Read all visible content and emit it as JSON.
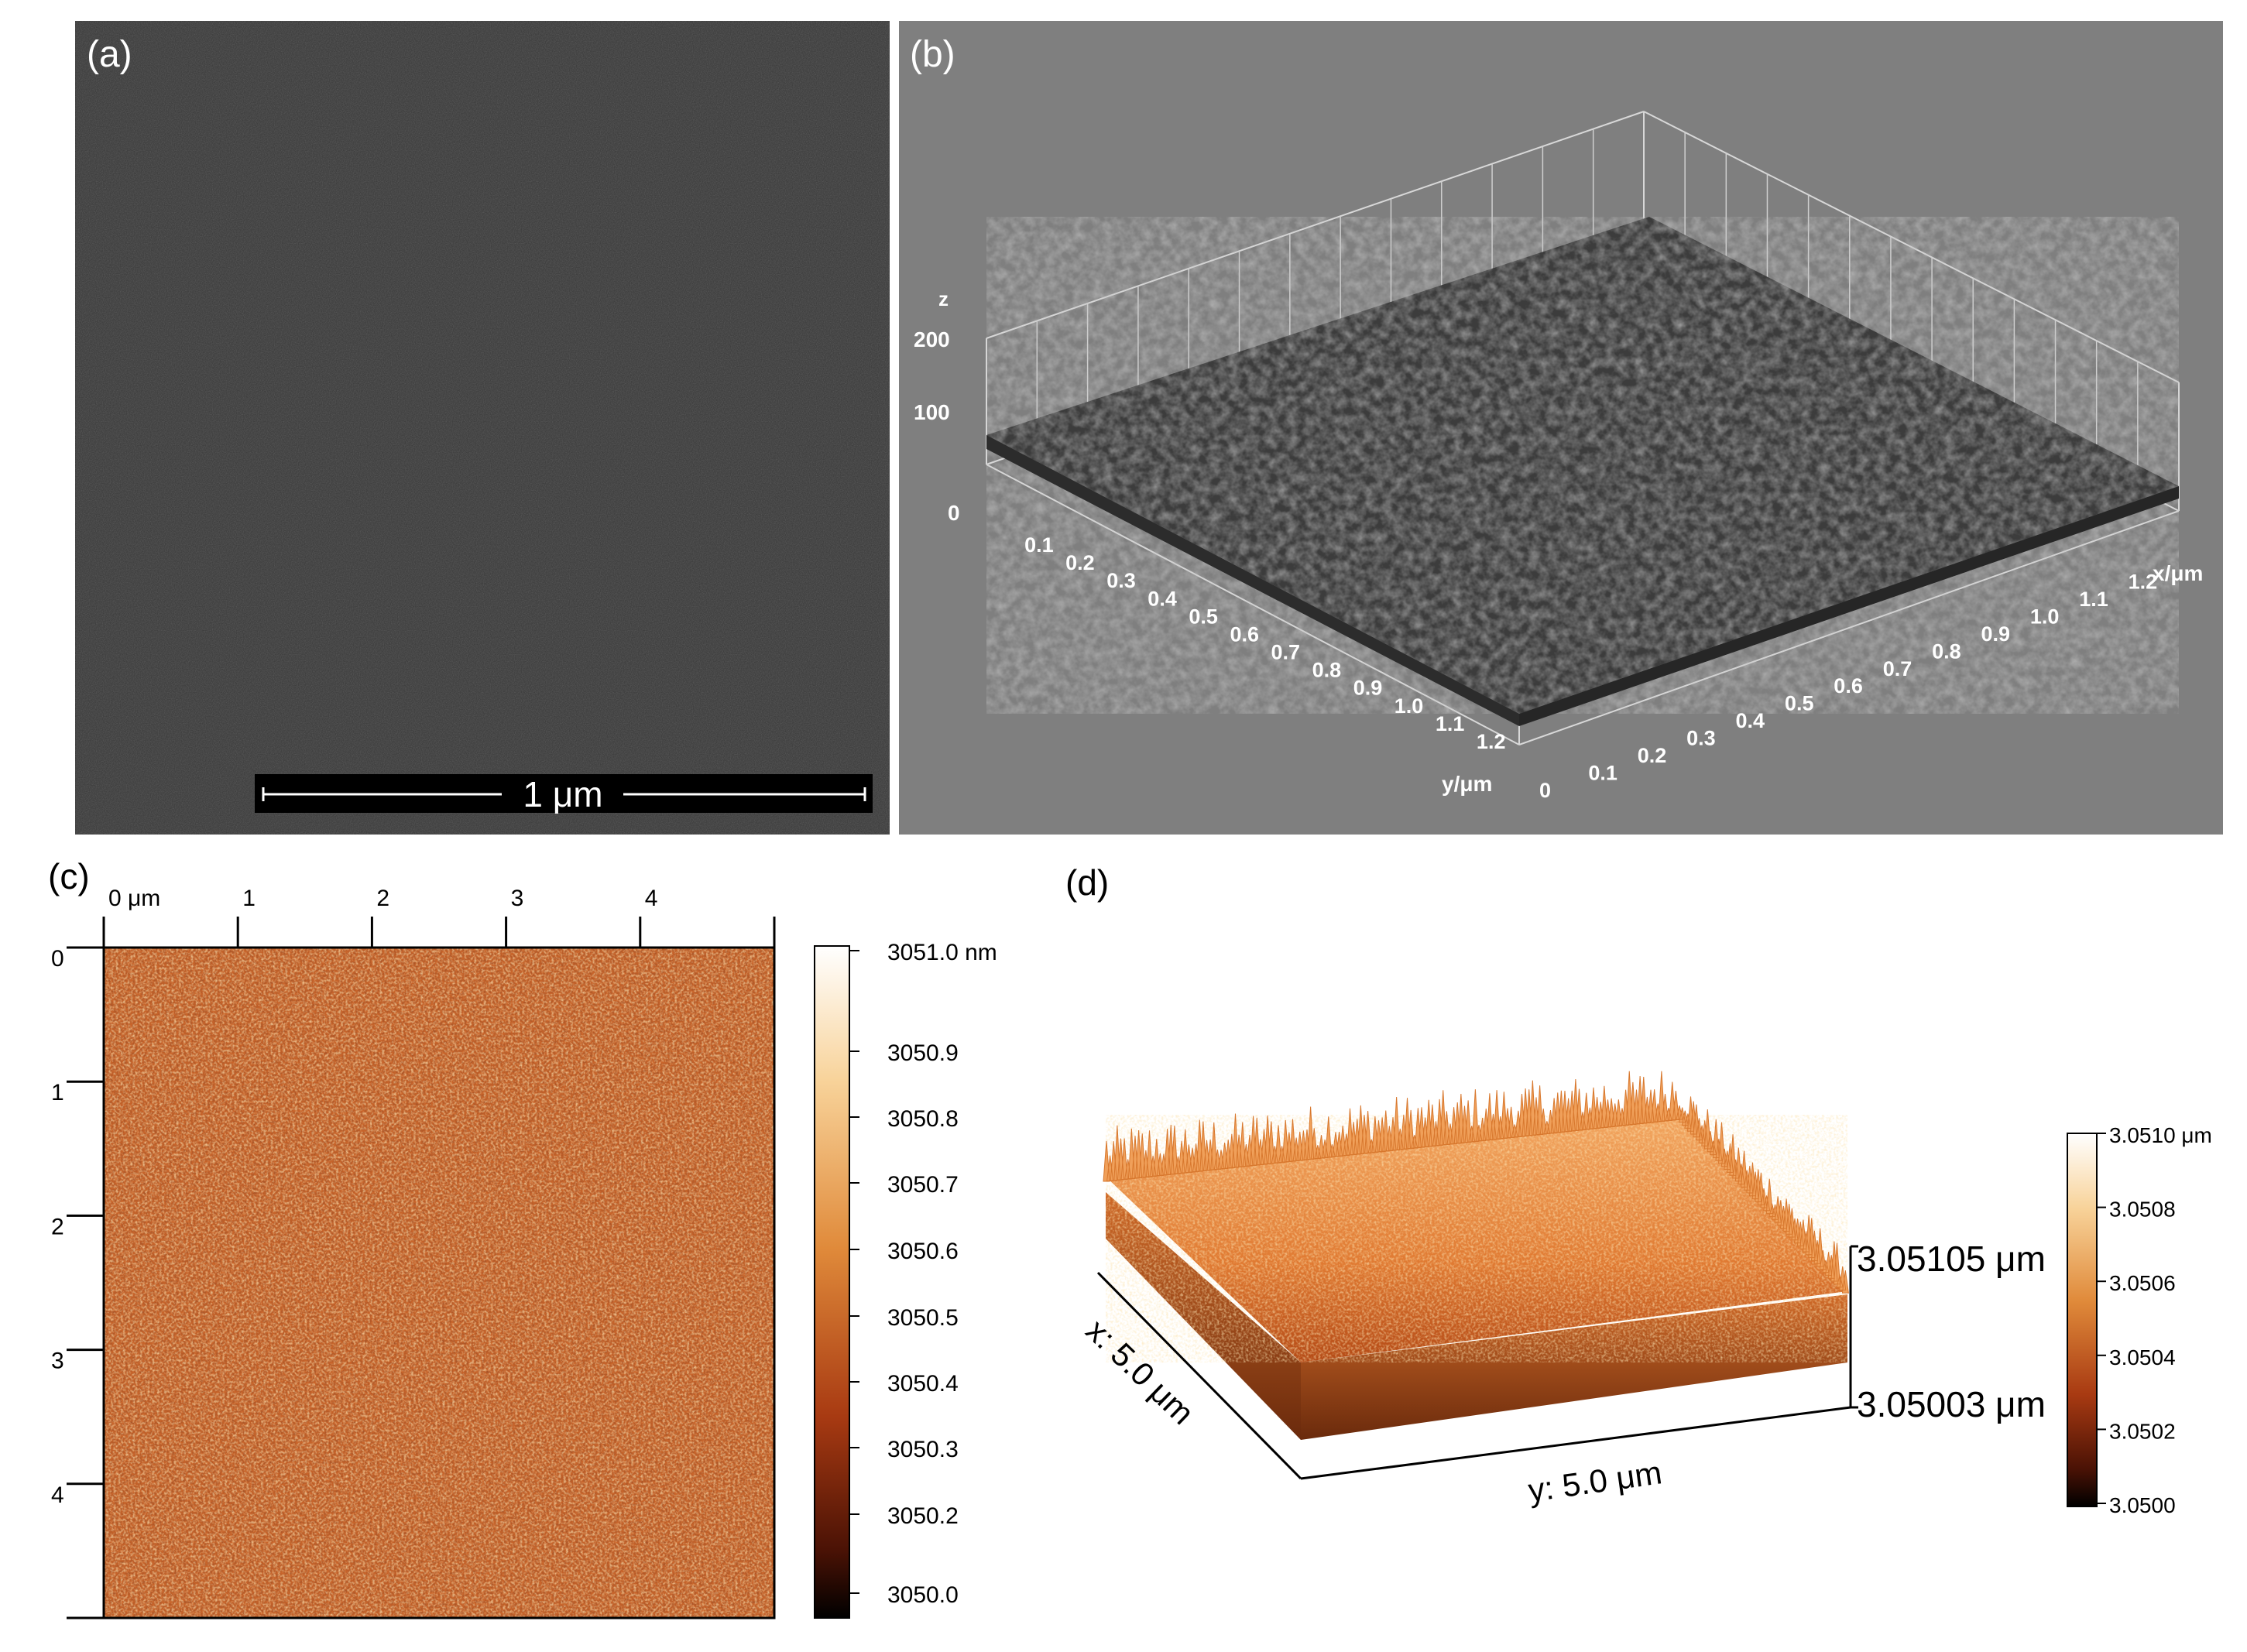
{
  "panel_a": {
    "label": "(a)",
    "scalebar": "1 μm"
  },
  "panel_b": {
    "label": "(b)",
    "z_axis_label": "z",
    "z_ticks": [
      "0",
      "100",
      "200"
    ],
    "y_axis_label": "y/μm",
    "y_ticks": [
      "0.1",
      "0.2",
      "0.3",
      "0.4",
      "0.5",
      "0.6",
      "0.7",
      "0.8",
      "0.9",
      "1.0",
      "1.1",
      "1.2"
    ],
    "x_axis_label": "x/μm",
    "x_ticks": [
      "0",
      "0.1",
      "0.2",
      "0.3",
      "0.4",
      "0.5",
      "0.6",
      "0.7",
      "0.8",
      "0.9",
      "1.0",
      "1.1",
      "1.2"
    ]
  },
  "panel_c": {
    "label": "(c)",
    "top_ticks": [
      "0 μm",
      "1",
      "2",
      "3",
      "4"
    ],
    "left_ticks": [
      "0",
      "1",
      "2",
      "3",
      "4"
    ],
    "colorbar_ticks": [
      "3051.0 nm",
      "3050.9",
      "3050.8",
      "3050.7",
      "3050.6",
      "3050.5",
      "3050.4",
      "3050.3",
      "3050.2",
      "3050.0"
    ]
  },
  "panel_d": {
    "label": "(d)",
    "z_top": "3.05105 μm",
    "z_bottom": "3.05003 μm",
    "x_axis_label": "x: 5.0 μm",
    "y_axis_label": "y: 5.0 μm",
    "colorbar_ticks": [
      "3.0510 μm",
      "3.0508",
      "3.0506",
      "3.0504",
      "3.0502",
      "3.0500"
    ]
  },
  "colors": {
    "sem_gray": "#404040",
    "plot_bg": "#7f7f7f",
    "afm_orange": "#c8642a",
    "afm_dark": "#5a1a08",
    "afm_light": "#f8c070"
  }
}
